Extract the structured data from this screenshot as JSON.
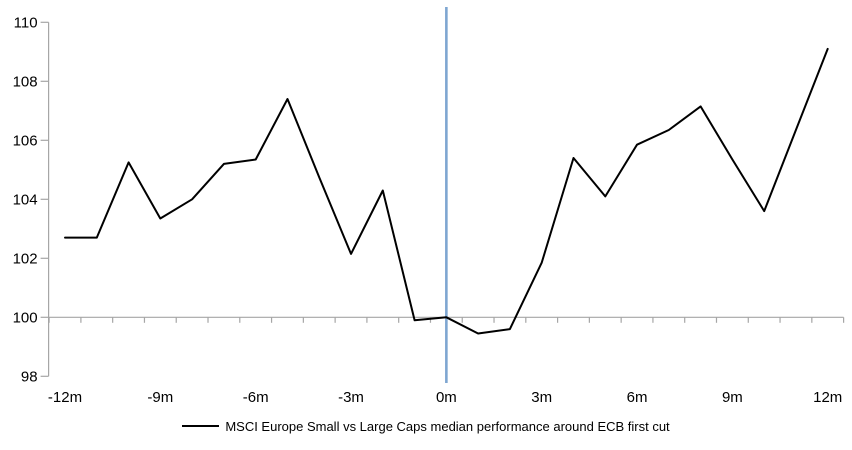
{
  "chart_data": {
    "type": "line",
    "title": "",
    "legend": {
      "position": "bottom",
      "marker": "line",
      "label": "MSCI Europe Small vs Large Caps median performance around ECB first cut"
    },
    "x_axis": {
      "unit": "months relative to ECB first cut",
      "tick_values": [
        -12,
        -9,
        -6,
        -3,
        0,
        3,
        6,
        9,
        12
      ],
      "tick_labels": [
        "-12m",
        "-9m",
        "-6m",
        "-3m",
        "0m",
        "3m",
        "6m",
        "9m",
        "12m"
      ],
      "minor_tick_step": 1,
      "range": [
        -12.5,
        12.5
      ]
    },
    "y_axis": {
      "tick_values": [
        110,
        108,
        106,
        104,
        102,
        100,
        98
      ],
      "tick_labels": [
        "110",
        "108",
        "106",
        "104",
        "102",
        "100",
        "98"
      ],
      "range": [
        98,
        110.5
      ],
      "baseline": 100
    },
    "event_line": {
      "x": 0,
      "color": "#7EA6D1"
    },
    "series": [
      {
        "name": "MSCI Europe Small vs Large Caps median performance around ECB first cut",
        "color": "#000000",
        "x": [
          -12,
          -11,
          -10,
          -9,
          -8,
          -7,
          -6,
          -5,
          -4,
          -3,
          -2,
          -1,
          0,
          1,
          2,
          3,
          4,
          5,
          6,
          7,
          8,
          9,
          10,
          11,
          12
        ],
        "values": [
          102.7,
          102.7,
          105.25,
          103.35,
          104.0,
          105.2,
          105.35,
          107.4,
          104.75,
          102.15,
          104.3,
          99.9,
          100.0,
          99.45,
          99.6,
          101.85,
          105.4,
          104.1,
          105.85,
          106.35,
          107.15,
          105.35,
          103.6,
          106.35,
          109.1
        ]
      }
    ],
    "colors": {
      "axis": "#A6A6A6",
      "baseline": "#A6A6A6",
      "text": "#000000",
      "background": "#FFFFFF"
    },
    "grid": "off"
  }
}
